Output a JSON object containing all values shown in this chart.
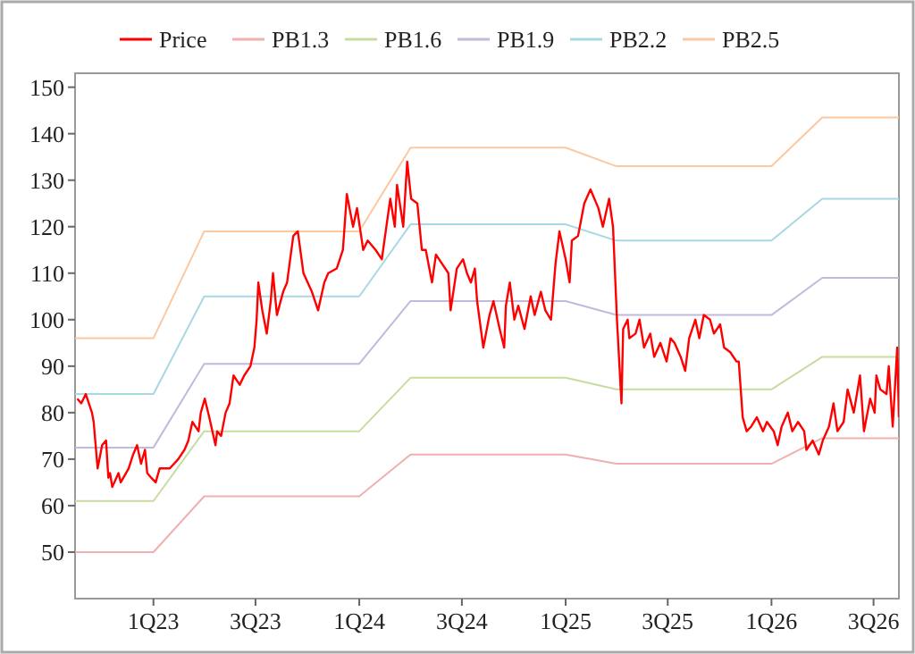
{
  "chart_data": {
    "type": "line",
    "legend": "top",
    "xlim": [
      "2022-08-15",
      "2026-08-15"
    ],
    "ylim": [
      40,
      153
    ],
    "xticks": [
      {
        "value": "2023-01-01",
        "label": "1Q23"
      },
      {
        "value": "2023-07-01",
        "label": "3Q23"
      },
      {
        "value": "2024-01-01",
        "label": "1Q24"
      },
      {
        "value": "2024-07-01",
        "label": "3Q24"
      },
      {
        "value": "2025-01-01",
        "label": "1Q25"
      },
      {
        "value": "2025-07-01",
        "label": "3Q25"
      },
      {
        "value": "2026-01-01",
        "label": "1Q26"
      },
      {
        "value": "2026-07-01",
        "label": "3Q26"
      }
    ],
    "yticks": [
      50,
      60,
      70,
      80,
      90,
      100,
      110,
      120,
      130,
      140,
      150
    ],
    "series": [
      {
        "name": "Price",
        "color": "#ff0000",
        "x": [
          "2022-08-19",
          "2022-08-26",
          "2022-09-03",
          "2022-09-14",
          "2022-09-17",
          "2022-09-24",
          "2022-10-02",
          "2022-10-09",
          "2022-10-13",
          "2022-10-16",
          "2022-10-20",
          "2022-10-31",
          "2022-11-04",
          "2022-11-18",
          "2022-11-26",
          "2022-12-03",
          "2022-12-10",
          "2022-12-17",
          "2022-12-21",
          "2022-12-28",
          "2023-01-05",
          "2023-01-12",
          "2023-01-30",
          "2023-02-14",
          "2023-02-25",
          "2023-03-04",
          "2023-03-11",
          "2023-03-22",
          "2023-03-26",
          "2023-04-02",
          "2023-04-10",
          "2023-04-21",
          "2023-04-24",
          "2023-05-01",
          "2023-05-09",
          "2023-05-16",
          "2023-05-23",
          "2023-06-03",
          "2023-06-11",
          "2023-06-22",
          "2023-06-29",
          "2023-07-03",
          "2023-07-06",
          "2023-07-13",
          "2023-07-21",
          "2023-07-28",
          "2023-08-01",
          "2023-08-08",
          "2023-08-19",
          "2023-08-26",
          "2023-09-06",
          "2023-09-14",
          "2023-09-24",
          "2023-10-09",
          "2023-10-20",
          "2023-10-31",
          "2023-11-07",
          "2023-11-22",
          "2023-12-03",
          "2023-12-10",
          "2023-12-21",
          "2023-12-28",
          "2024-01-08",
          "2024-01-16",
          "2024-01-30",
          "2024-02-10",
          "2024-02-25",
          "2024-03-04",
          "2024-03-08",
          "2024-03-19",
          "2024-03-26",
          "2024-04-02",
          "2024-04-13",
          "2024-04-21",
          "2024-04-28",
          "2024-05-09",
          "2024-05-16",
          "2024-05-27",
          "2024-06-07",
          "2024-06-11",
          "2024-06-22",
          "2024-07-03",
          "2024-07-10",
          "2024-07-17",
          "2024-07-24",
          "2024-07-28",
          "2024-08-08",
          "2024-08-19",
          "2024-08-26",
          "2024-09-06",
          "2024-09-14",
          "2024-09-17",
          "2024-09-24",
          "2024-10-02",
          "2024-10-09",
          "2024-10-20",
          "2024-10-31",
          "2024-11-07",
          "2024-11-18",
          "2024-11-26",
          "2024-12-06",
          "2024-12-14",
          "2024-12-21",
          "2025-01-01",
          "2025-01-08",
          "2025-01-12",
          "2025-01-23",
          "2025-02-03",
          "2025-02-14",
          "2025-02-28",
          "2025-03-08",
          "2025-03-19",
          "2025-03-26",
          "2025-04-02",
          "2025-04-10",
          "2025-04-13",
          "2025-04-21",
          "2025-04-24",
          "2025-05-05",
          "2025-05-12",
          "2025-05-20",
          "2025-05-31",
          "2025-06-07",
          "2025-06-18",
          "2025-06-29",
          "2025-07-06",
          "2025-07-13",
          "2025-07-24",
          "2025-08-01",
          "2025-08-08",
          "2025-08-19",
          "2025-08-26",
          "2025-09-03",
          "2025-09-14",
          "2025-09-21",
          "2025-10-02",
          "2025-10-09",
          "2025-10-20",
          "2025-10-31",
          "2025-11-04",
          "2025-11-11",
          "2025-11-18",
          "2025-11-26",
          "2025-12-06",
          "2025-12-17",
          "2025-12-24",
          "2026-01-05",
          "2026-01-12",
          "2026-01-19",
          "2026-01-30",
          "2026-02-07",
          "2026-02-17",
          "2026-02-28",
          "2026-03-04",
          "2026-03-15",
          "2026-03-26",
          "2026-04-02",
          "2026-04-13",
          "2026-04-21",
          "2026-04-28",
          "2026-05-09",
          "2026-05-16",
          "2026-05-27",
          "2026-06-07",
          "2026-06-14",
          "2026-06-25",
          "2026-07-03",
          "2026-07-06",
          "2026-07-13",
          "2026-07-24",
          "2026-07-28",
          "2026-08-04",
          "2026-08-12",
          "2026-08-15"
        ],
        "values": [
          83,
          82,
          84,
          80,
          78,
          68,
          73,
          74,
          66,
          67,
          64,
          67,
          65,
          68,
          71,
          73,
          69,
          72,
          67,
          66,
          65,
          68,
          68,
          70,
          72,
          74,
          78,
          76,
          80,
          83,
          79,
          73,
          76,
          75,
          80,
          82,
          88,
          86,
          88,
          90,
          94,
          100,
          108,
          102,
          97,
          104,
          110,
          101,
          106,
          108,
          118,
          119,
          110,
          106,
          102,
          108,
          110,
          111,
          115,
          127,
          120,
          124,
          115,
          117,
          115,
          113,
          126,
          120,
          129,
          120,
          134,
          126,
          125,
          115,
          115,
          108,
          114,
          112,
          110,
          102,
          111,
          113,
          110,
          108,
          111,
          104,
          94,
          101,
          104,
          98,
          94,
          103,
          108,
          100,
          103,
          98,
          105,
          101,
          106,
          102,
          100,
          112,
          119,
          113,
          108,
          117,
          118,
          125,
          128,
          124,
          120,
          126,
          120,
          100,
          82,
          98,
          100,
          96,
          97,
          100,
          94,
          97,
          92,
          95,
          91,
          96,
          95,
          92,
          89,
          96,
          100,
          96,
          101,
          100,
          97,
          99,
          94,
          93,
          91,
          91,
          79,
          76,
          77,
          79,
          76,
          78,
          76,
          73,
          77,
          80,
          76,
          78,
          76,
          72,
          74,
          71,
          74,
          77,
          82,
          76,
          78,
          85,
          80,
          88,
          76,
          83,
          80,
          88,
          85,
          84,
          90,
          77,
          94,
          79
        ]
      },
      {
        "name": "PB1.3",
        "color": "#f0b0b0",
        "x": [
          "2022-08-15",
          "2023-01-01",
          "2023-04-01",
          "2024-01-01",
          "2024-04-01",
          "2025-01-01",
          "2025-04-01",
          "2026-01-01",
          "2026-04-01",
          "2026-08-15"
        ],
        "values": [
          50,
          50,
          62,
          62,
          71,
          71,
          69,
          69,
          74.5,
          74.5
        ]
      },
      {
        "name": "PB1.6",
        "color": "#c8dca0",
        "x": [
          "2022-08-15",
          "2023-01-01",
          "2023-04-01",
          "2024-01-01",
          "2024-04-01",
          "2025-01-01",
          "2025-04-01",
          "2026-01-01",
          "2026-04-01",
          "2026-08-15"
        ],
        "values": [
          61,
          61,
          76,
          76,
          87.5,
          87.5,
          85,
          85,
          92,
          92
        ]
      },
      {
        "name": "PB1.9",
        "color": "#c4b8dc",
        "x": [
          "2022-08-15",
          "2023-01-01",
          "2023-04-01",
          "2024-01-01",
          "2024-04-01",
          "2025-01-01",
          "2025-04-01",
          "2026-01-01",
          "2026-04-01",
          "2026-08-15"
        ],
        "values": [
          72.5,
          72.5,
          90.5,
          90.5,
          104,
          104,
          101,
          101,
          109,
          109
        ]
      },
      {
        "name": "PB2.2",
        "color": "#a8d8e4",
        "x": [
          "2022-08-15",
          "2023-01-01",
          "2023-04-01",
          "2024-01-01",
          "2024-04-01",
          "2025-01-01",
          "2025-04-01",
          "2026-01-01",
          "2026-04-01",
          "2026-08-15"
        ],
        "values": [
          84,
          84,
          105,
          105,
          120.5,
          120.5,
          117,
          117,
          126,
          126
        ]
      },
      {
        "name": "PB2.5",
        "color": "#fcc8a0",
        "x": [
          "2022-08-15",
          "2023-01-01",
          "2023-04-01",
          "2024-01-01",
          "2024-04-01",
          "2025-01-01",
          "2025-04-01",
          "2026-01-01",
          "2026-04-01",
          "2026-08-15"
        ],
        "values": [
          96,
          96,
          119,
          119,
          137,
          137,
          133,
          133,
          143.5,
          143.5
        ]
      }
    ]
  }
}
